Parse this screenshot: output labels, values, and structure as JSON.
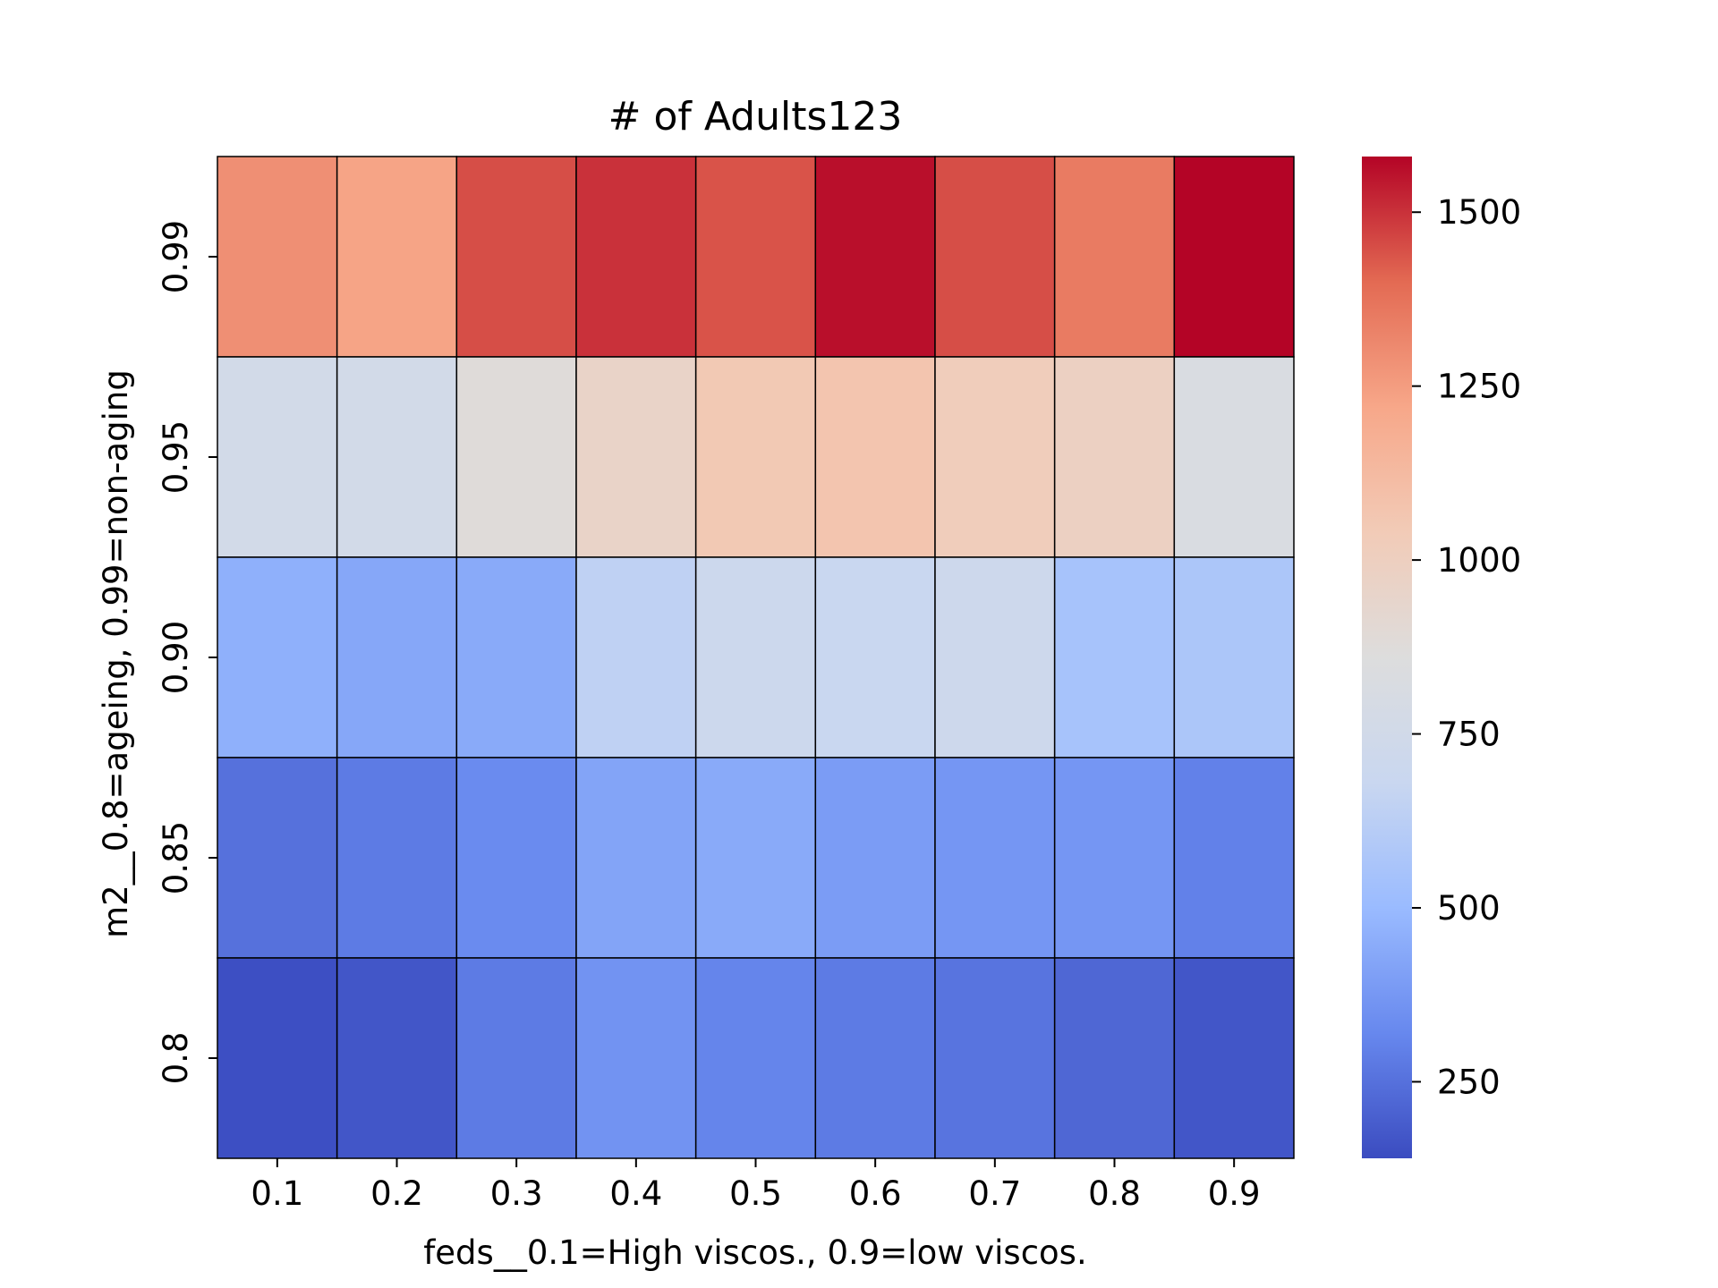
{
  "chart_data": {
    "type": "heatmap",
    "title": "# of Adults123",
    "xlabel": "feds__0.1=High viscos., 0.9=low viscos.",
    "ylabel": "m2__0.8=ageing, 0.99=non-aging",
    "x_categories": [
      "0.1",
      "0.2",
      "0.3",
      "0.4",
      "0.5",
      "0.6",
      "0.7",
      "0.8",
      "0.9"
    ],
    "y_categories": [
      "0.99",
      "0.95",
      "0.90",
      "0.85",
      "0.8"
    ],
    "values": [
      [
        1290,
        1230,
        1450,
        1500,
        1440,
        1560,
        1450,
        1350,
        1580
      ],
      [
        760,
        760,
        880,
        960,
        1050,
        1070,
        1020,
        990,
        820
      ],
      [
        460,
        430,
        440,
        640,
        710,
        680,
        720,
        550,
        570
      ],
      [
        250,
        280,
        330,
        420,
        440,
        390,
        370,
        370,
        300
      ],
      [
        150,
        170,
        280,
        360,
        310,
        280,
        260,
        220,
        170
      ]
    ],
    "colormap": "coolwarm",
    "colormap_stops": [
      "#3b4cc0",
      "#6788ee",
      "#9abbff",
      "#c9d7f0",
      "#dddddd",
      "#f2cbb7",
      "#f7a789",
      "#e36a53",
      "#b40426"
    ],
    "vmin": 140,
    "vmax": 1580,
    "colorbar_ticks": [
      250,
      500,
      750,
      1000,
      1250,
      1500
    ],
    "grid": false,
    "legend": "colorbar-right"
  }
}
